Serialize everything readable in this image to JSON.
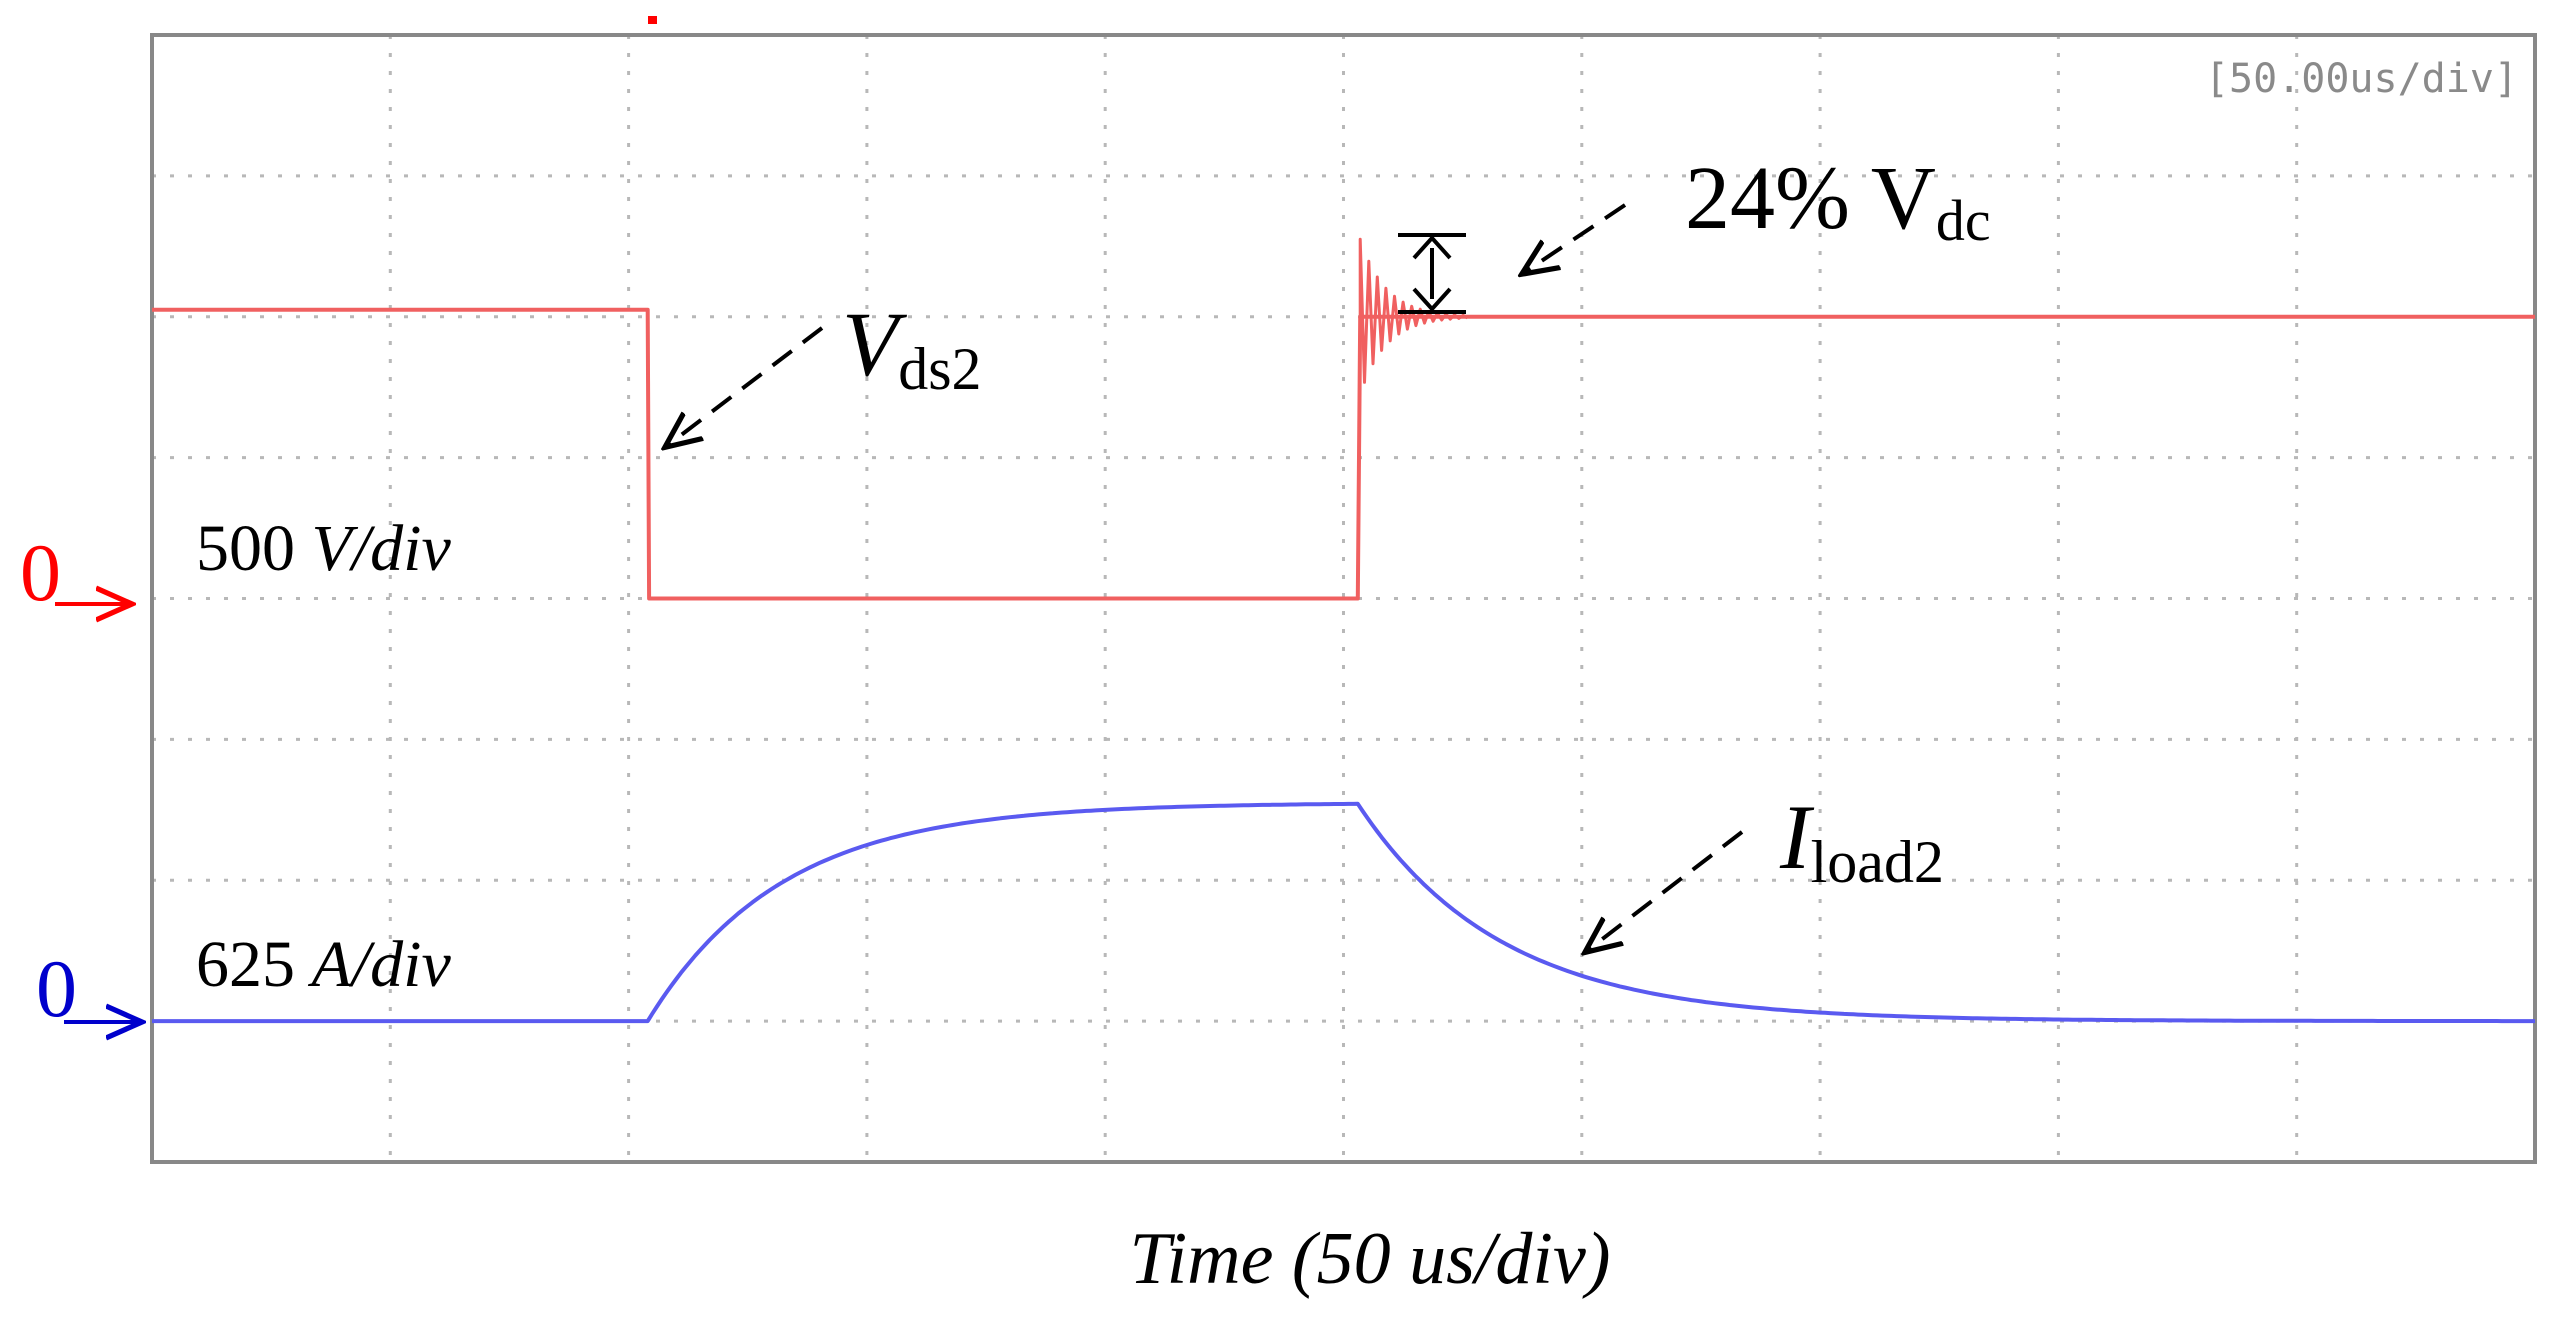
{
  "chart_data": {
    "type": "line",
    "scale_readout": "[50.00us/div]",
    "x_label": "Time (50 us/div)",
    "time_per_div_us": 50,
    "time_range_us": [
      0,
      500
    ],
    "grid": "dotted, 10 x 8 divisions",
    "channels": [
      {
        "id": "vds2",
        "color": "#ff0000",
        "trace_color": "#f06060",
        "label_main": "V",
        "label_sub": "ds2",
        "scale_value": "500",
        "scale_unit": "V/div",
        "zero_marker": "0",
        "zero_level_div": 4,
        "points": [
          [
            0,
            2.05
          ],
          [
            104,
            2.05
          ],
          [
            104.3,
            0
          ],
          [
            253,
            0
          ],
          [
            253.5,
            2.0
          ],
          [
            500,
            2.0
          ]
        ],
        "ringing_at_us": 253.5
      },
      {
        "id": "iload2",
        "color": "#0000cc",
        "trace_color": "#5a5af0",
        "label_main": "I",
        "label_sub": "load2",
        "scale_value": "625",
        "scale_unit": "A/div",
        "zero_marker": "0",
        "zero_level_div": 1,
        "rise_start_us": 104,
        "fall_start_us": 253,
        "peak_div": 1.55,
        "rise_tau_us": 28,
        "fall_tau_us": 30
      }
    ],
    "annotation": {
      "text_main": "24% V",
      "text_sub": "dc",
      "from_div": 2.55,
      "to_div": 1.97,
      "at_us": 268
    }
  }
}
